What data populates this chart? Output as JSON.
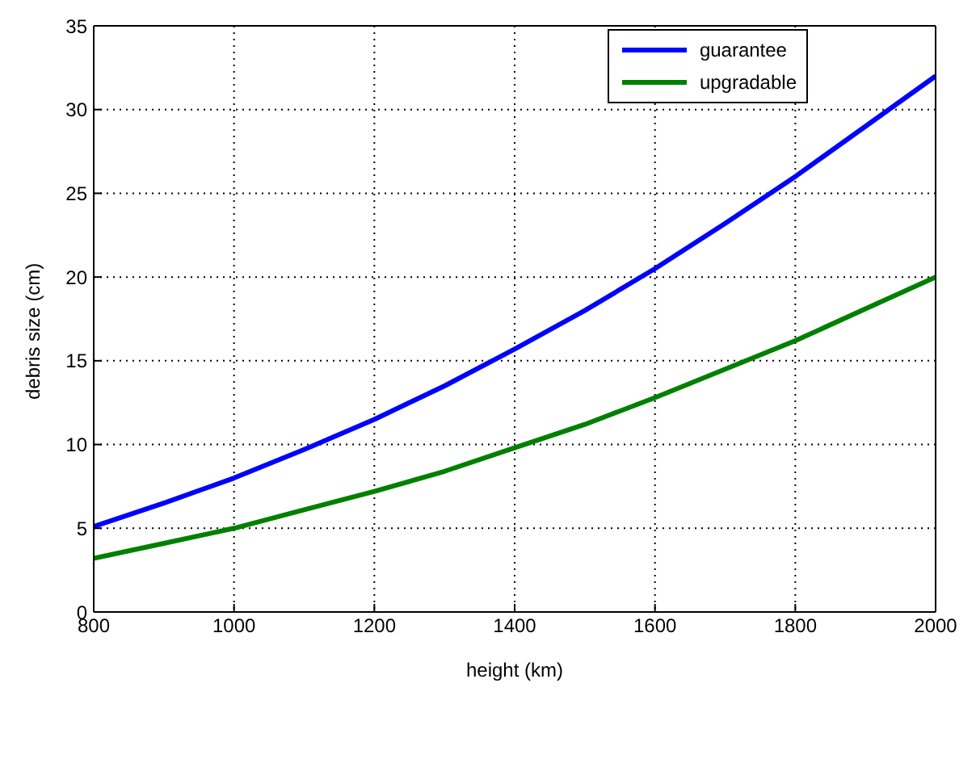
{
  "chart_data": {
    "type": "line",
    "xlabel": "height (km)",
    "ylabel": "debris size (cm)",
    "x": [
      800,
      900,
      1000,
      1100,
      1200,
      1300,
      1400,
      1500,
      1600,
      1700,
      1800,
      1900,
      2000
    ],
    "series": [
      {
        "name": "guarantee",
        "color": "#0000ff",
        "values": [
          5.1,
          6.5,
          8.0,
          9.7,
          11.5,
          13.5,
          15.7,
          18.0,
          20.5,
          23.2,
          26.0,
          29.0,
          32.0
        ]
      },
      {
        "name": "upgradable",
        "color": "#008000",
        "values": [
          3.2,
          4.1,
          5.0,
          6.1,
          7.2,
          8.4,
          9.8,
          11.2,
          12.8,
          14.5,
          16.2,
          18.1,
          20.0
        ]
      }
    ],
    "xlim": [
      800,
      2000
    ],
    "xticks": [
      800,
      1000,
      1200,
      1400,
      1600,
      1800,
      2000
    ],
    "ylim": [
      0,
      35
    ],
    "yticks": [
      0,
      5,
      10,
      15,
      20,
      25,
      30,
      35
    ],
    "grid": true,
    "legend": "top right",
    "marker": "none",
    "line_style": "solid"
  }
}
